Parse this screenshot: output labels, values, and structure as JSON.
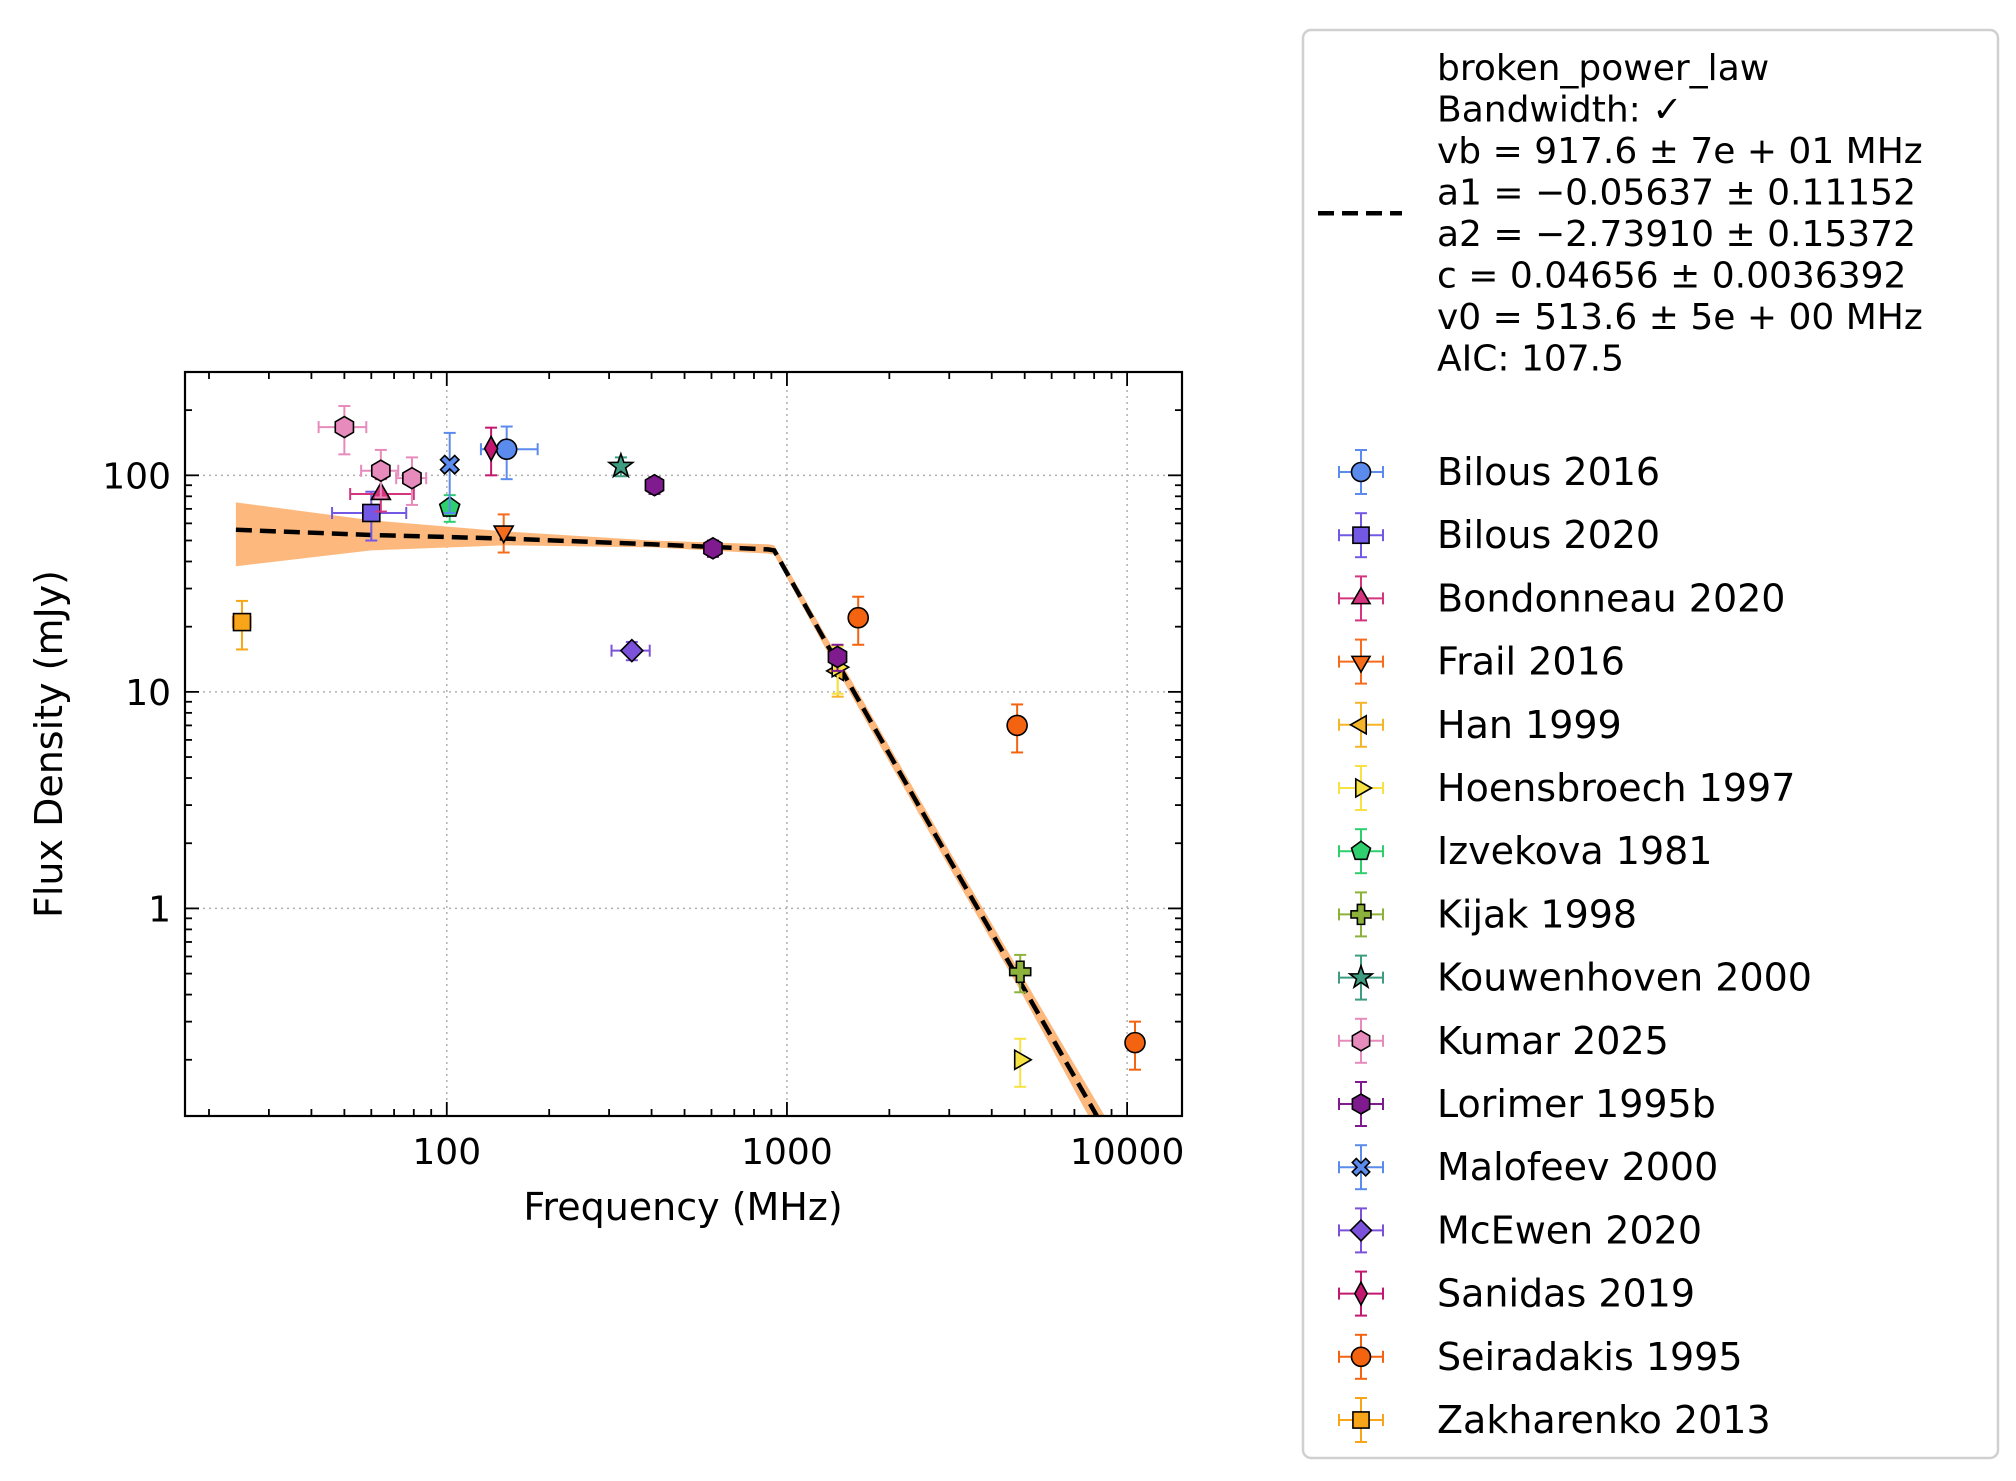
{
  "chart_data": {
    "type": "scatter",
    "title": "",
    "xlabel": "Frequency (MHz)",
    "ylabel": "Flux Density (mJy)",
    "x_scale": "log",
    "y_scale": "log",
    "xlim": [
      17,
      14500
    ],
    "ylim": [
      0.11,
      300
    ],
    "x_ticks": [
      {
        "value": 100,
        "label": "100"
      },
      {
        "value": 1000,
        "label": "1000"
      },
      {
        "value": 10000,
        "label": "10000"
      }
    ],
    "y_ticks": [
      {
        "value": 1,
        "label": "1"
      },
      {
        "value": 10,
        "label": "10"
      },
      {
        "value": 100,
        "label": "100"
      }
    ],
    "grid": true,
    "legend_position": "outside-right",
    "fit": {
      "label": "broken_power_law",
      "lines": [
        "broken_power_law",
        "Bandwidth: ✓",
        "vb = 917.6 ± 7e + 01 MHz",
        "a1 = −0.05637 ± 0.11152",
        "a2 = −2.73910 ± 0.15372",
        "c = 0.04656 ± 0.0036392",
        "v0 = 513.6 ± 5e + 00 MHz",
        "AIC: 107.5"
      ],
      "line_color": "#000000",
      "band_color": "#fdb97d",
      "x": [
        24,
        60,
        150,
        400,
        880,
        917.6,
        1500,
        3000,
        4800,
        8600
      ],
      "y": [
        56,
        53,
        51,
        48,
        45.5,
        45,
        11.4,
        1.69,
        0.47,
        0.095
      ],
      "y_upper": [
        75,
        62,
        55,
        50,
        48,
        47.5,
        12.3,
        1.85,
        0.52,
        0.11
      ],
      "y_lower": [
        38,
        45,
        47.5,
        46.5,
        43.5,
        43,
        10.5,
        1.55,
        0.43,
        0.08
      ]
    },
    "series": [
      {
        "name": "Bilous 2016",
        "marker": "circle",
        "color": "#5b8bec",
        "edge": "#000000",
        "points": [
          {
            "x": 150,
            "y": 132,
            "xerr": [
              24,
              35
            ],
            "yerr": [
              36,
              36
            ]
          }
        ]
      },
      {
        "name": "Bilous 2020",
        "marker": "square",
        "color": "#7358e6",
        "edge": "#000000",
        "points": [
          {
            "x": 60,
            "y": 67,
            "xerr": [
              14,
              16
            ],
            "yerr": [
              17,
              17
            ]
          }
        ]
      },
      {
        "name": "Bondonneau 2020",
        "marker": "triangle-up",
        "color": "#d4357e",
        "edge": "#000000",
        "points": [
          {
            "x": 64,
            "y": 82,
            "xerr": [
              12,
              16
            ],
            "yerr": [
              14,
              14
            ]
          }
        ]
      },
      {
        "name": "Frail 2016",
        "marker": "triangle-down",
        "color": "#f76c1c",
        "edge": "#000000",
        "points": [
          {
            "x": 147,
            "y": 55,
            "xerr": [
              0,
              0
            ],
            "yerr": [
              11,
              11
            ]
          }
        ]
      },
      {
        "name": "Han 1999",
        "marker": "triangle-left",
        "color": "#f5b52a",
        "edge": "#000000",
        "points": [
          {
            "x": 1410,
            "y": 12.5,
            "xerr": [
              0,
              0
            ],
            "yerr": [
              3,
              3
            ]
          }
        ]
      },
      {
        "name": "Hoensbroech 1997",
        "marker": "triangle-right",
        "color": "#f6e343",
        "edge": "#000000",
        "points": [
          {
            "x": 1410,
            "y": 13,
            "xerr": [
              0,
              0
            ],
            "yerr": [
              3.2,
              3.2
            ]
          },
          {
            "x": 4850,
            "y": 0.2,
            "xerr": [
              0,
              0
            ],
            "yerr": [
              0.05,
              0.05
            ]
          }
        ]
      },
      {
        "name": "Izvekova 1981",
        "marker": "pentagon",
        "color": "#2fcf6e",
        "edge": "#000000",
        "points": [
          {
            "x": 102,
            "y": 71,
            "xerr": [
              0,
              0
            ],
            "yerr": [
              10,
              10
            ]
          }
        ]
      },
      {
        "name": "Kijak 1998",
        "marker": "plus",
        "color": "#8cb23c",
        "edge": "#000000",
        "points": [
          {
            "x": 4850,
            "y": 0.51,
            "xerr": [
              0,
              0
            ],
            "yerr": [
              0.1,
              0.1
            ]
          }
        ]
      },
      {
        "name": "Kouwenhoven 2000",
        "marker": "star",
        "color": "#3e9d80",
        "edge": "#000000",
        "points": [
          {
            "x": 325,
            "y": 110,
            "xerr": [
              0,
              0
            ],
            "yerr": [
              11,
              11
            ]
          }
        ]
      },
      {
        "name": "Kumar 2025",
        "marker": "hexagon",
        "color": "#e68bbb",
        "edge": "#000000",
        "points": [
          {
            "x": 50,
            "y": 167,
            "xerr": [
              8,
              8
            ],
            "yerr": [
              42,
              42
            ]
          },
          {
            "x": 64,
            "y": 105,
            "xerr": [
              8,
              8
            ],
            "yerr": [
              26,
              26
            ]
          },
          {
            "x": 79,
            "y": 97,
            "xerr": [
              8,
              8
            ],
            "yerr": [
              24,
              24
            ]
          }
        ]
      },
      {
        "name": "Lorimer 1995b",
        "marker": "hexagon",
        "color": "#7f1b8f",
        "edge": "#000000",
        "points": [
          {
            "x": 408,
            "y": 90,
            "xerr": [
              0,
              0
            ],
            "yerr": [
              8,
              8
            ]
          },
          {
            "x": 606,
            "y": 46,
            "xerr": [
              0,
              0
            ],
            "yerr": [
              4,
              4
            ]
          },
          {
            "x": 1408,
            "y": 14.5,
            "xerr": [
              0,
              0
            ],
            "yerr": [
              2,
              2
            ]
          }
        ]
      },
      {
        "name": "Malofeev 2000",
        "marker": "x",
        "color": "#5b8bec",
        "edge": "#000000",
        "points": [
          {
            "x": 102,
            "y": 112,
            "xerr": [
              0,
              0
            ],
            "yerr": [
              45,
              45
            ]
          }
        ]
      },
      {
        "name": "McEwen 2020",
        "marker": "diamond",
        "color": "#7b52d9",
        "edge": "#000000",
        "points": [
          {
            "x": 350,
            "y": 15.5,
            "xerr": [
              45,
              45
            ],
            "yerr": [
              1.5,
              1.5
            ]
          }
        ]
      },
      {
        "name": "Sanidas 2019",
        "marker": "thin-diamond",
        "color": "#c2186f",
        "edge": "#000000",
        "points": [
          {
            "x": 135,
            "y": 133,
            "xerr": [
              0,
              0
            ],
            "yerr": [
              33,
              33
            ]
          }
        ]
      },
      {
        "name": "Seiradakis 1995",
        "marker": "circle",
        "color": "#f4630f",
        "edge": "#000000",
        "points": [
          {
            "x": 1620,
            "y": 22,
            "xerr": [
              0,
              0
            ],
            "yerr": [
              5.5,
              5.5
            ]
          },
          {
            "x": 4750,
            "y": 7,
            "xerr": [
              0,
              0
            ],
            "yerr": [
              1.75,
              1.75
            ]
          },
          {
            "x": 10550,
            "y": 0.24,
            "xerr": [
              0,
              0
            ],
            "yerr": [
              0.06,
              0.06
            ]
          }
        ]
      },
      {
        "name": "Zakharenko 2013",
        "marker": "square",
        "color": "#f9a51a",
        "edge": "#000000",
        "points": [
          {
            "x": 25,
            "y": 21,
            "xerr": [
              1.5,
              1.5
            ],
            "yerr": [
              5.3,
              5.3
            ]
          }
        ]
      }
    ]
  }
}
